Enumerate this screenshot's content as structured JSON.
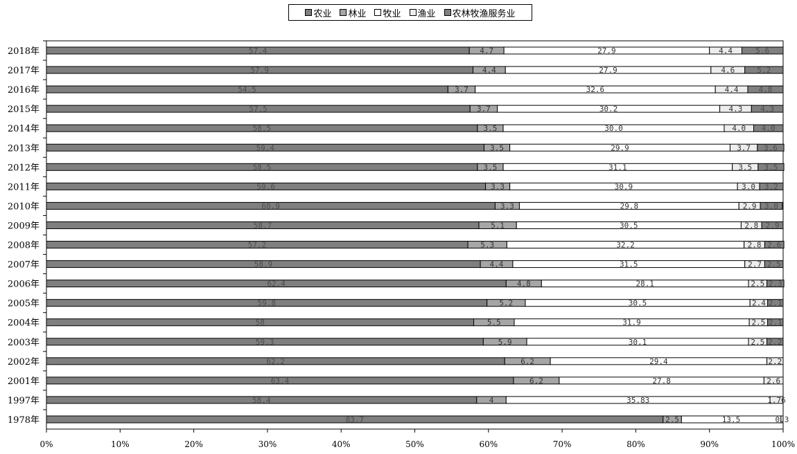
{
  "colors": {
    "农业": "#7f7f7f",
    "林业": "#a6a6a6",
    "牧业": "#ffffff",
    "渔业": "#ededed",
    "农林牧渔服务业": "#808080",
    "border": "#000000",
    "label_on_dark": "#4d4d4d",
    "label_on_light": "#333333"
  },
  "legend": [
    "农业",
    "林业",
    "牧业",
    "渔业",
    "农林牧渔服务业"
  ],
  "chart_data": {
    "type": "bar",
    "orientation": "horizontal",
    "stacked": "percent",
    "categories": [
      "2018年",
      "2017年",
      "2016年",
      "2015年",
      "2014年",
      "2013年",
      "2012年",
      "2011年",
      "2010年",
      "2009年",
      "2008年",
      "2007年",
      "2006年",
      "2005年",
      "2004年",
      "2003年",
      "2002年",
      "2001年",
      "1997年",
      "1978年"
    ],
    "series": [
      {
        "name": "农业",
        "values": [
          57.4,
          57.9,
          54.5,
          57.5,
          58.5,
          59.4,
          58.5,
          59.6,
          60.9,
          58.7,
          57.2,
          58.9,
          62.4,
          59.8,
          58,
          59.3,
          62.2,
          63.4,
          58.4,
          83.7
        ],
        "labels": [
          "57.4",
          "57.9",
          "54.5",
          "57.5",
          "58.5",
          "59.4",
          "58.5",
          "59.6",
          "60.9",
          "58.7",
          "57.2",
          "58.9",
          "62.4",
          "59.8",
          "58",
          "59.3",
          "62.2",
          "63.4",
          "58.4",
          "83.7"
        ]
      },
      {
        "name": "林业",
        "values": [
          4.7,
          4.4,
          3.7,
          3.7,
          3.5,
          3.5,
          3.5,
          3.3,
          3.3,
          5.1,
          5.3,
          4.4,
          4.8,
          5.2,
          5.5,
          5.9,
          6.2,
          6.2,
          4,
          2.5
        ],
        "labels": [
          "4.7",
          "4.4",
          "3.7",
          "3.7",
          "3.5",
          "3.5",
          "3.5",
          "3.3",
          "3.3",
          "5.1",
          "5.3",
          "4.4",
          "4.8",
          "5.2",
          "5.5",
          "5.9",
          "6.2",
          "6.2",
          "4",
          "2.5"
        ]
      },
      {
        "name": "牧业",
        "values": [
          27.9,
          27.9,
          32.6,
          30.2,
          30.0,
          29.9,
          31.1,
          30.9,
          29.8,
          30.5,
          32.2,
          31.5,
          28.1,
          30.5,
          31.9,
          30.1,
          29.4,
          27.8,
          35.83,
          13.5
        ],
        "labels": [
          "27.9",
          "27.9",
          "32.6",
          "30.2",
          "30.0",
          "29.9",
          "31.1",
          "30.9",
          "29.8",
          "30.5",
          "32.2",
          "31.5",
          "28.1",
          "30.5",
          "31.9",
          "30.1",
          "29.4",
          "27.8",
          "35.83",
          "13.5"
        ]
      },
      {
        "name": "渔业",
        "values": [
          4.4,
          4.6,
          4.4,
          4.3,
          4.0,
          3.7,
          3.5,
          3.0,
          2.9,
          2.8,
          2.8,
          2.7,
          2.5,
          2.4,
          2.5,
          2.5,
          2.2,
          2.6,
          1.76,
          0.3
        ],
        "labels": [
          "4.4",
          "4.6",
          "4.4",
          "4.3",
          "4.0",
          "3.7",
          "3.5",
          "3.0",
          "2.9",
          "2.8",
          "2.8",
          "2.7",
          "2.5",
          "2.4",
          "2.5",
          "2.5",
          "2.2",
          "2.6",
          "1.76",
          "0.3"
        ]
      },
      {
        "name": "农林牧渔服务业",
        "values": [
          5.6,
          5.2,
          4.8,
          4.3,
          4.0,
          3.6,
          3.5,
          3.2,
          3.0,
          2.9,
          2.6,
          2.5,
          2.3,
          2.1,
          2.1,
          2.2,
          0,
          0,
          0,
          0
        ],
        "labels": [
          "5.6",
          "5.2",
          "4.8",
          "4.3",
          "4.0",
          "3.6",
          "3.5",
          "3.2",
          "3.0",
          "2.9",
          "2.6",
          "2.5",
          "2.3",
          "2.1",
          "2.1",
          "2.2",
          "",
          "",
          "",
          ""
        ]
      }
    ],
    "xlim": [
      0,
      100
    ],
    "x_ticks": [
      "0%",
      "10%",
      "20%",
      "30%",
      "40%",
      "50%",
      "60%",
      "70%",
      "80%",
      "90%",
      "100%"
    ],
    "legend_position": "top-center",
    "grid": false
  }
}
